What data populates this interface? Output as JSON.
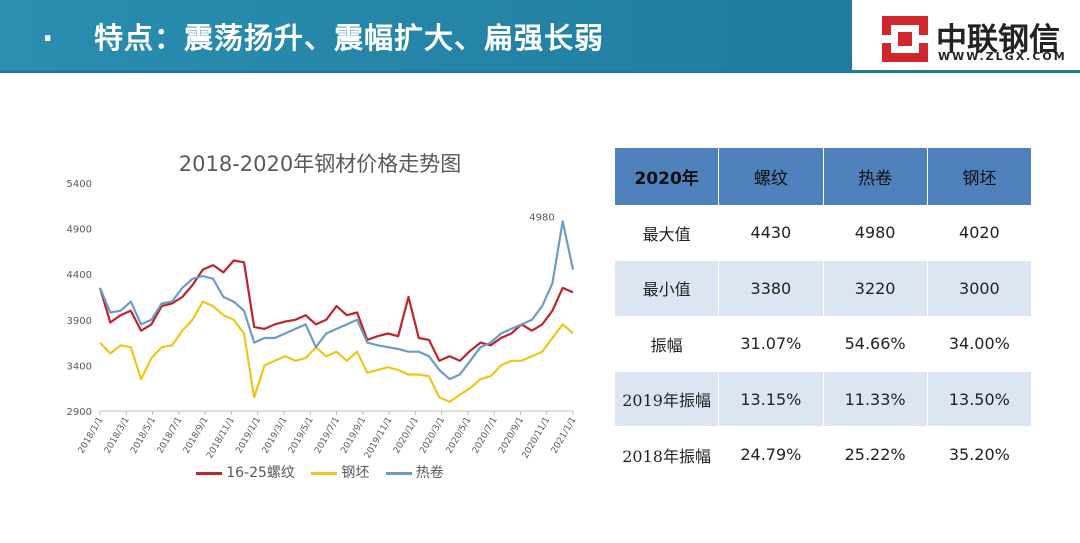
{
  "header": {
    "bullet": ".",
    "title": "特点：震荡扬升、震幅扩大、扁强长弱",
    "logo_name": "中联钢信",
    "logo_url": "WWW.ZLGX.COM"
  },
  "chart_data": {
    "type": "line",
    "title": "2018-2020年钢材价格走势图",
    "y_ticks": [
      "5400",
      "4900",
      "4400",
      "3900",
      "3400",
      "2900"
    ],
    "ylim": [
      2900,
      5400
    ],
    "x_ticks": [
      "2018/1/1",
      "2018/3/1",
      "2018/5/1",
      "2018/7/1",
      "2018/9/1",
      "2018/11/1",
      "2019/1/1",
      "2019/3/1",
      "2019/5/1",
      "2019/7/1",
      "2019/9/1",
      "2019/11/1",
      "2020/1/1",
      "2020/3/1",
      "2020/5/1",
      "2020/7/1",
      "2020/9/1",
      "2020/11/1",
      "2021/1/1"
    ],
    "annotation": "4980",
    "legend_position": "bottom",
    "grid": false,
    "series": [
      {
        "name": "16-25螺纹",
        "color": "#c0232b",
        "values": [
          4250,
          3870,
          3950,
          4000,
          3780,
          3850,
          4050,
          4080,
          4150,
          4280,
          4450,
          4500,
          4420,
          4550,
          4530,
          3820,
          3800,
          3850,
          3880,
          3900,
          3950,
          3850,
          3900,
          4050,
          3950,
          3980,
          3680,
          3720,
          3750,
          3720,
          4150,
          3700,
          3680,
          3450,
          3500,
          3450,
          3560,
          3650,
          3620,
          3700,
          3750,
          3850,
          3780,
          3850,
          4000,
          4250,
          4200
        ]
      },
      {
        "name": "钢坯",
        "color": "#f0c419",
        "values": [
          3650,
          3530,
          3620,
          3600,
          3250,
          3480,
          3600,
          3620,
          3780,
          3900,
          4100,
          4050,
          3950,
          3900,
          3750,
          3050,
          3400,
          3450,
          3500,
          3450,
          3480,
          3600,
          3500,
          3550,
          3450,
          3550,
          3320,
          3350,
          3380,
          3350,
          3300,
          3300,
          3280,
          3050,
          3000,
          3080,
          3150,
          3250,
          3280,
          3400,
          3450,
          3450,
          3500,
          3550,
          3700,
          3850,
          3750
        ]
      },
      {
        "name": "热卷",
        "color": "#6b9cc6",
        "values": [
          4250,
          3980,
          4000,
          4100,
          3850,
          3900,
          4080,
          4100,
          4250,
          4350,
          4380,
          4350,
          4150,
          4100,
          4000,
          3650,
          3700,
          3700,
          3750,
          3800,
          3850,
          3600,
          3750,
          3800,
          3850,
          3900,
          3650,
          3620,
          3600,
          3580,
          3550,
          3550,
          3500,
          3350,
          3250,
          3300,
          3450,
          3600,
          3650,
          3750,
          3800,
          3850,
          3900,
          4050,
          4300,
          4980,
          4450
        ]
      }
    ]
  },
  "table": {
    "header": [
      "2020年",
      "螺纹",
      "热卷",
      "钢坯"
    ],
    "rows": [
      [
        "最大值",
        "4430",
        "4980",
        "4020"
      ],
      [
        "最小值",
        "3380",
        "3220",
        "3000"
      ],
      [
        "振幅",
        "31.07%",
        "54.66%",
        "34.00%"
      ],
      [
        "2019年振幅",
        "13.15%",
        "11.33%",
        "13.50%"
      ],
      [
        "2018年振幅",
        "24.79%",
        "25.22%",
        "35.20%"
      ]
    ]
  }
}
